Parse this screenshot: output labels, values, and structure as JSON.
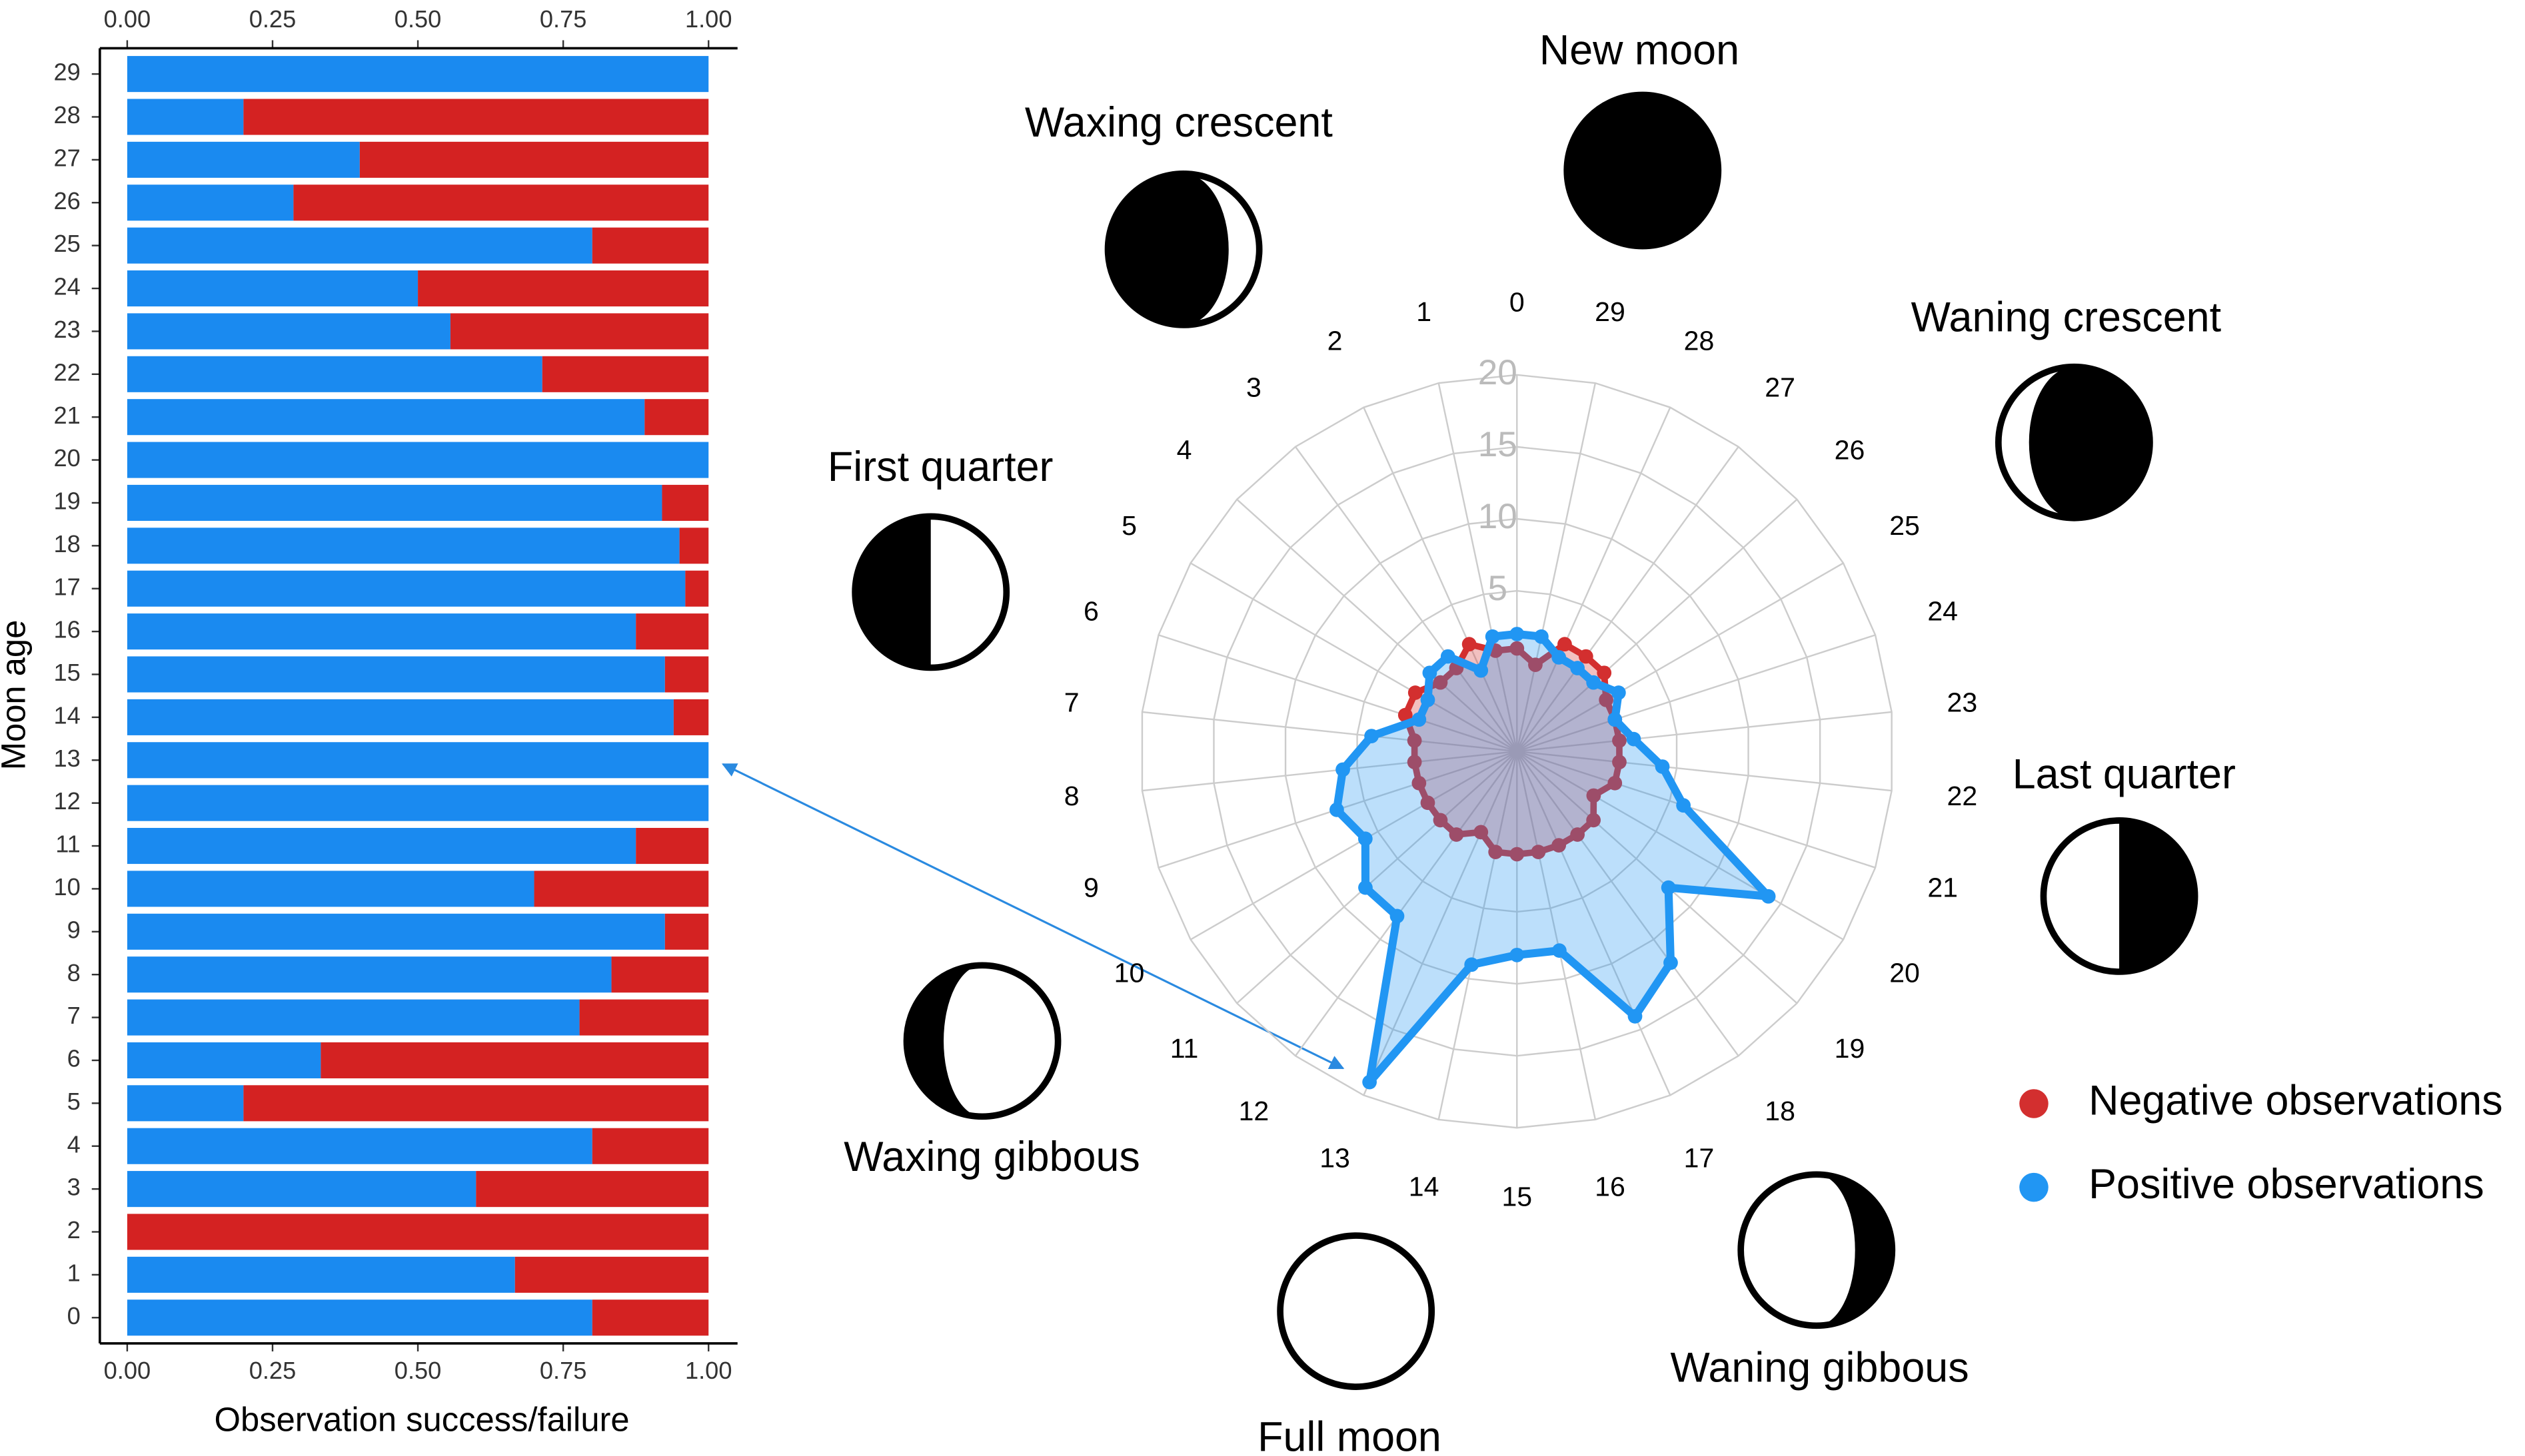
{
  "chart_data": [
    {
      "type": "bar",
      "orientation": "horizontal",
      "stacked": true,
      "categories": [
        "0",
        "1",
        "2",
        "3",
        "4",
        "5",
        "6",
        "7",
        "8",
        "9",
        "10",
        "11",
        "12",
        "13",
        "14",
        "15",
        "16",
        "17",
        "18",
        "19",
        "20",
        "21",
        "22",
        "23",
        "24",
        "25",
        "26",
        "27",
        "28",
        "29"
      ],
      "series": [
        {
          "color": "#1a8af0",
          "values": [
            0.8,
            0.667,
            0,
            0.6,
            0.8,
            0.2,
            0.333,
            0.778,
            0.833,
            0.925,
            0.7,
            0.875,
            1,
            1,
            0.94,
            0.925,
            0.875,
            0.96,
            0.95,
            0.92,
            1,
            0.89,
            0.714,
            0.556,
            0.5,
            0.8,
            0.286,
            0.4,
            0.2,
            1
          ]
        },
        {
          "color": "#d42222",
          "values": [
            0.2,
            0.333,
            1,
            0.4,
            0.2,
            0.8,
            0.667,
            0.222,
            0.167,
            0.075,
            0.3,
            0.125,
            0,
            0,
            0.06,
            0.075,
            0.125,
            0.04,
            0.05,
            0.08,
            0,
            0.11,
            0.286,
            0.444,
            0.5,
            0.2,
            0.714,
            0.6,
            0.8,
            0
          ]
        }
      ],
      "xlim": [
        0,
        1
      ],
      "xticks": [
        {
          "value": 0,
          "label": "0.00"
        },
        {
          "value": 0.25,
          "label": "0.25"
        },
        {
          "value": 0.5,
          "label": "0.50"
        },
        {
          "value": 0.75,
          "label": "0.75"
        },
        {
          "value": 1,
          "label": "1.00"
        }
      ],
      "x_label": "Observation success/failure",
      "y_label": "Moon age"
    },
    {
      "type": "radar",
      "categories": [
        "0",
        "1",
        "2",
        "3",
        "4",
        "5",
        "6",
        "7",
        "8",
        "9",
        "10",
        "11",
        "12",
        "13",
        "14",
        "15",
        "16",
        "17",
        "18",
        "19",
        "20",
        "21",
        "22",
        "23",
        "24",
        "25",
        "26",
        "27",
        "28",
        "29"
      ],
      "series": [
        {
          "name": "Negative observations",
          "color": "#d32f2f",
          "values": [
            1,
            1,
            2,
            1,
            1,
            2,
            2,
            1,
            1,
            1,
            1,
            1,
            1,
            0,
            1,
            1,
            1,
            1,
            1,
            1,
            0,
            1,
            1,
            1,
            1,
            1,
            2,
            2,
            2,
            0
          ]
        },
        {
          "name": "Positive observations",
          "color": "#2196f3",
          "values": [
            2,
            2,
            0,
            2,
            2,
            1,
            1,
            4,
            6,
            7,
            6,
            8,
            8,
            19,
            9,
            8,
            8,
            14,
            12,
            8,
            14,
            6,
            4,
            2,
            1,
            2,
            1,
            1,
            1,
            2
          ]
        }
      ],
      "rlim": [
        0,
        20
      ],
      "rticks": [
        5,
        10,
        15,
        20
      ],
      "grid": true,
      "legend": "right",
      "annotations": [
        "New moon",
        "Waxing crescent",
        "Waning crescent",
        "First quarter",
        "Last quarter",
        "Waxing gibbous",
        "Waning gibbous",
        "Full moon"
      ]
    }
  ]
}
